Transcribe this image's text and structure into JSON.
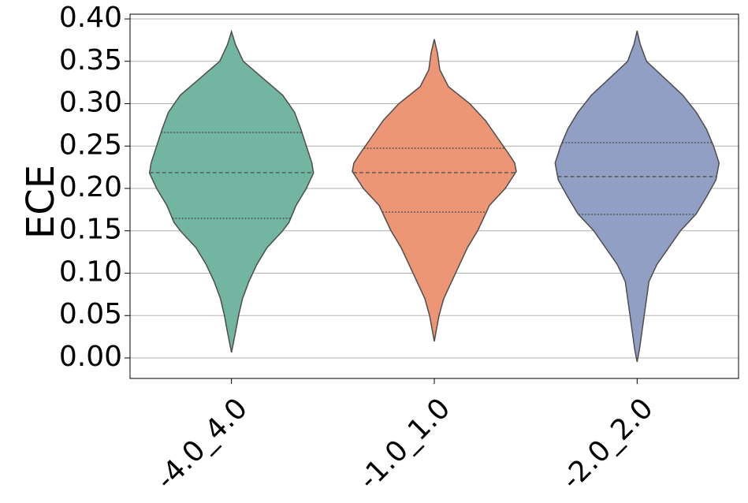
{
  "chart_data": {
    "type": "violin",
    "ylabel": "ECE",
    "categories": [
      "-4.0_4.0",
      "-1.0_1.0",
      "-2.0_2.0"
    ],
    "violins": [
      {
        "color": "#72b5a0",
        "y": [
          0.385,
          0.37,
          0.35,
          0.33,
          0.31,
          0.29,
          0.27,
          0.25,
          0.23,
          0.218,
          0.2,
          0.18,
          0.16,
          0.15,
          0.13,
          0.11,
          0.09,
          0.07,
          0.05,
          0.03,
          0.0065
        ],
        "density": [
          0,
          5,
          15,
          40,
          65,
          80,
          88,
          95,
          102,
          104,
          95,
          82,
          73,
          65,
          45,
          32,
          22,
          14,
          9,
          5,
          0
        ],
        "quartiles": [
          0.1647,
          0.2186,
          0.266
        ]
      },
      {
        "color": "#ec9675",
        "y": [
          0.376,
          0.36,
          0.34,
          0.32,
          0.3,
          0.28,
          0.26,
          0.24,
          0.23,
          0.22,
          0.2,
          0.18,
          0.16,
          0.15,
          0.13,
          0.11,
          0.09,
          0.07,
          0.05,
          0.035,
          0.0195
        ],
        "density": [
          0,
          4,
          7,
          18,
          45,
          65,
          80,
          95,
          102,
          104,
          90,
          70,
          60,
          55,
          42,
          32,
          22,
          12,
          6,
          3,
          0
        ],
        "quartiles": [
          0.1721,
          0.2186,
          0.2474
        ]
      },
      {
        "color": "#919fc4",
        "y": [
          0.386,
          0.37,
          0.35,
          0.33,
          0.31,
          0.29,
          0.27,
          0.25,
          0.23,
          0.21,
          0.19,
          0.17,
          0.15,
          0.13,
          0.11,
          0.09,
          0.07,
          0.05,
          0.03,
          0.01,
          -0.0047
        ],
        "density": [
          0,
          4,
          12,
          35,
          58,
          75,
          88,
          97,
          104,
          100,
          88,
          75,
          55,
          40,
          25,
          15,
          12,
          9,
          6,
          3,
          0
        ],
        "quartiles": [
          0.1693,
          0.214,
          0.254
        ]
      }
    ],
    "ylim": [
      -0.0242,
      0.4056
    ],
    "yticks": [
      {
        "value": 0,
        "label": "0.00"
      },
      {
        "value": 0.05,
        "label": "0.05"
      },
      {
        "value": 0.1,
        "label": "0.10"
      },
      {
        "value": 0.15,
        "label": "0.15"
      },
      {
        "value": 0.2,
        "label": "0.20"
      },
      {
        "value": 0.25,
        "label": "0.25"
      },
      {
        "value": 0.3,
        "label": "0.30"
      },
      {
        "value": 0.35,
        "label": "0.35"
      },
      {
        "value": 0.4,
        "label": "0.40"
      }
    ],
    "grid": true
  }
}
